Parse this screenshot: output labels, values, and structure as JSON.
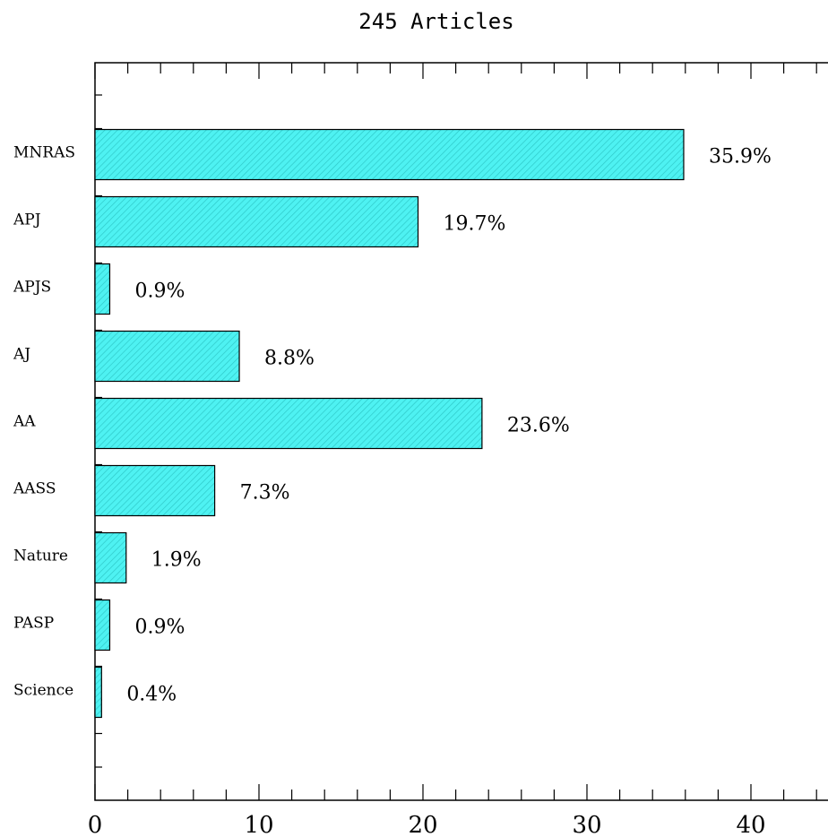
{
  "chart_data": {
    "type": "bar",
    "orientation": "horizontal",
    "title": "245 Articles",
    "categories": [
      "MNRAS",
      "APJ",
      "APJS",
      "AJ",
      "AA",
      "AASS",
      "Nature",
      "PASP",
      "Science"
    ],
    "values": [
      35.9,
      19.7,
      0.9,
      8.8,
      23.6,
      7.3,
      1.9,
      0.9,
      0.4
    ],
    "data_labels": [
      "35.9%",
      "19.7%",
      "0.9%",
      "8.8%",
      "23.6%",
      "7.3%",
      "1.9%",
      "0.9%",
      "0.4%"
    ],
    "x_ticks": [
      0,
      10,
      20,
      30,
      40
    ],
    "x_tick_labels": [
      "0",
      "10",
      "20",
      "30",
      "40"
    ],
    "xlim": [
      0,
      45
    ],
    "xlabel": "",
    "ylabel": "",
    "grid": false,
    "legend": "none",
    "bar_color": "#4ef2f2",
    "bar_hatch_color": "#2fc9c9",
    "edge_color": "#000000"
  }
}
